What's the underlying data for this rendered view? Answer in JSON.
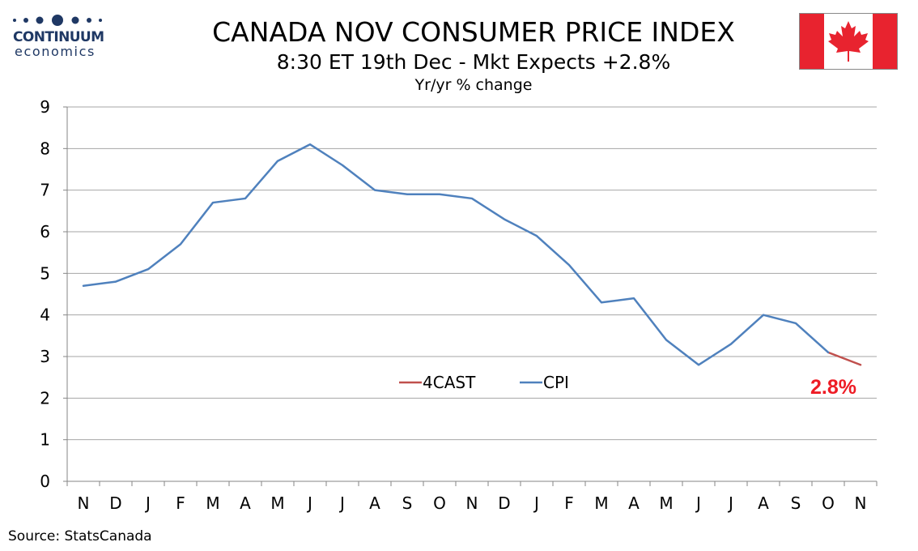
{
  "header": {
    "logo_name": "CONTINUUM",
    "logo_sub": "economics",
    "title": "CANADA NOV CONSUMER PRICE INDEX",
    "subtitle": "8:30 ET 19th Dec - Mkt Expects +2.8%",
    "units": "Yr/yr % change"
  },
  "footer": {
    "source": "Source: StatsCanada"
  },
  "colors": {
    "cpi": "#4f81bd",
    "forecast": "#c0504d",
    "forecast_label": "#ee1c25",
    "grid": "#a6a6a6",
    "logo": "#1f3864",
    "flag_red": "#e8232f"
  },
  "chart_data": {
    "type": "line",
    "title": "CANADA NOV CONSUMER PRICE INDEX",
    "subtitle": "8:30 ET 19th Dec - Mkt Expects +2.8%",
    "ylabel": "Yr/yr % change",
    "xlabel": "",
    "categories": [
      "N",
      "D",
      "J",
      "F",
      "M",
      "A",
      "M",
      "J",
      "J",
      "A",
      "S",
      "O",
      "N",
      "D",
      "J",
      "F",
      "M",
      "A",
      "M",
      "J",
      "J",
      "A",
      "S",
      "O",
      "N"
    ],
    "ylim": [
      0,
      9
    ],
    "yticks": [
      "0",
      "1",
      "2",
      "3",
      "4",
      "5",
      "6",
      "7",
      "8",
      "9"
    ],
    "grid": true,
    "legend_position": "center-right",
    "series": [
      {
        "name": "4CAST",
        "values": [
          null,
          null,
          null,
          null,
          null,
          null,
          null,
          null,
          null,
          null,
          null,
          null,
          null,
          null,
          null,
          null,
          null,
          null,
          null,
          null,
          null,
          null,
          null,
          3.1,
          2.8
        ]
      },
      {
        "name": "CPI",
        "values": [
          4.7,
          4.8,
          5.1,
          5.7,
          6.7,
          6.8,
          7.7,
          8.1,
          7.6,
          7.0,
          6.9,
          6.9,
          6.8,
          6.3,
          5.9,
          5.2,
          4.3,
          4.4,
          3.4,
          2.8,
          3.3,
          4.0,
          3.8,
          3.1,
          null
        ]
      }
    ],
    "annotations": [
      {
        "text": "2.8%"
      }
    ]
  }
}
